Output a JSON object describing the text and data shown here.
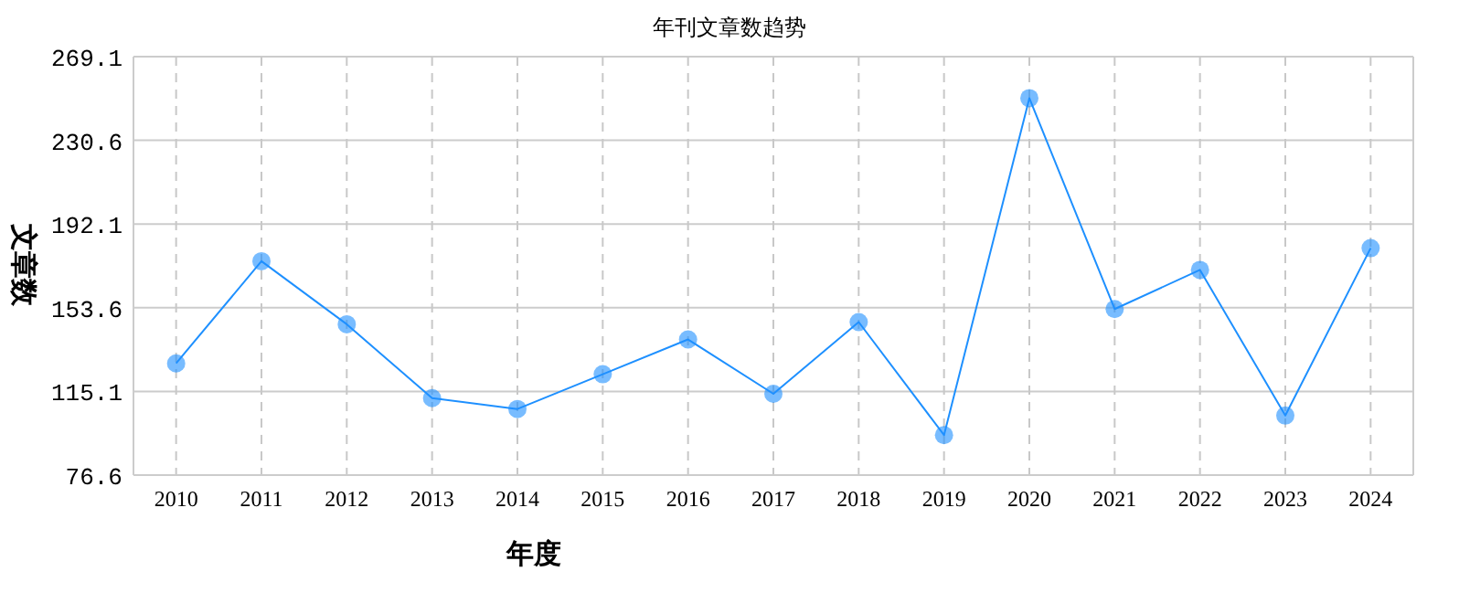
{
  "chart_data": {
    "type": "line",
    "title": "年刊文章数趋势",
    "xlabel": "年度",
    "ylabel": "文章数",
    "categories": [
      "2010",
      "2011",
      "2012",
      "2013",
      "2014",
      "2015",
      "2016",
      "2017",
      "2018",
      "2019",
      "2020",
      "2021",
      "2022",
      "2023",
      "2024"
    ],
    "series": [
      {
        "color": "#1e90ff",
        "values": [
          128,
          175,
          146,
          112,
          107,
          123,
          139,
          114,
          147,
          95,
          250,
          153,
          171,
          104,
          181
        ]
      }
    ],
    "ylim": [
      76.6,
      269.1
    ],
    "yticks": [
      76.6,
      115.1,
      153.6,
      192.1,
      230.6,
      269.1
    ],
    "grid": true,
    "marker": "circle",
    "line_style": "solid"
  }
}
